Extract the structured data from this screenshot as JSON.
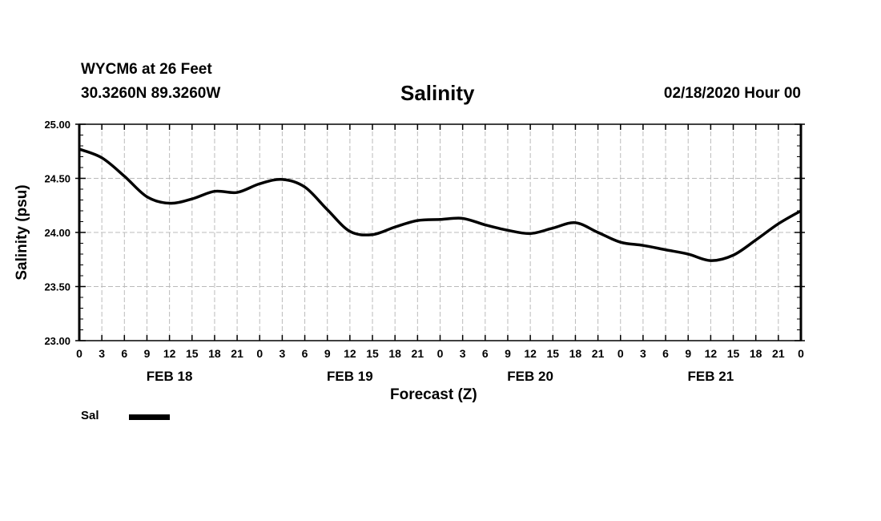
{
  "chart_data": {
    "type": "line",
    "title": "Salinity",
    "station": "WYCM6 at 26 Feet",
    "location": "30.3260N 89.3260W",
    "run": "02/18/2020 Hour 00",
    "xlabel": "Forecast (Z)",
    "ylabel": "Salinity (psu)",
    "ylim": [
      23.0,
      25.0
    ],
    "xlim_hours": [
      0,
      96
    ],
    "yticks": [
      "25.00",
      "24.50",
      "24.00",
      "23.50",
      "23.00"
    ],
    "ytick_values": [
      25.0,
      24.5,
      24.0,
      23.5,
      23.0
    ],
    "xtick_labels": [
      "0",
      "3",
      "6",
      "9",
      "12",
      "15",
      "18",
      "21",
      "0",
      "3",
      "6",
      "9",
      "12",
      "15",
      "18",
      "21",
      "0",
      "3",
      "6",
      "9",
      "12",
      "15",
      "18",
      "21",
      "0",
      "3",
      "6",
      "9",
      "12",
      "15",
      "18",
      "21",
      "0"
    ],
    "date_labels": [
      {
        "label": "FEB 18",
        "hour": 12
      },
      {
        "label": "FEB 19",
        "hour": 36
      },
      {
        "label": "FEB 20",
        "hour": 60
      },
      {
        "label": "FEB 21",
        "hour": 84
      }
    ],
    "grid": true,
    "legend": {
      "position": "bottom-left",
      "entries": [
        "Sal"
      ]
    },
    "series": [
      {
        "name": "Sal",
        "color": "#000000",
        "x_hours": [
          0,
          3,
          6,
          9,
          12,
          15,
          18,
          21,
          24,
          27,
          30,
          33,
          36,
          39,
          42,
          45,
          48,
          51,
          54,
          57,
          60,
          63,
          66,
          69,
          72,
          75,
          78,
          81,
          84,
          87,
          90,
          93,
          96
        ],
        "values": [
          24.77,
          24.69,
          24.52,
          24.33,
          24.27,
          24.31,
          24.38,
          24.37,
          24.45,
          24.49,
          24.42,
          24.21,
          24.01,
          23.98,
          24.05,
          24.11,
          24.12,
          24.13,
          24.07,
          24.02,
          23.99,
          24.04,
          24.09,
          24.0,
          23.91,
          23.88,
          23.84,
          23.8,
          23.74,
          23.79,
          23.93,
          24.08,
          24.2
        ]
      }
    ]
  }
}
